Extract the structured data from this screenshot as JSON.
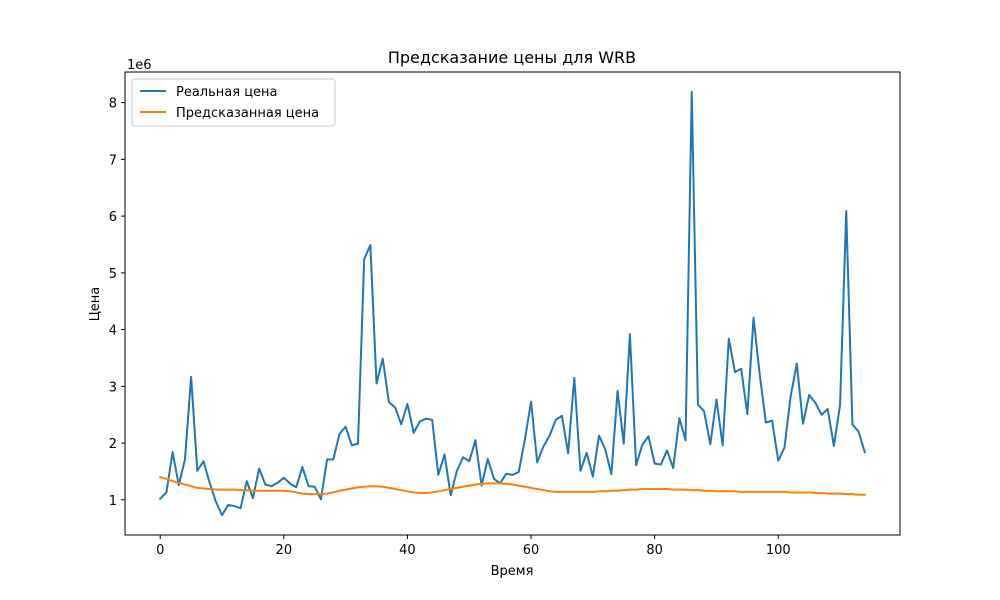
{
  "chart_data": {
    "type": "line",
    "title": "Предсказание цены для WRB",
    "xlabel": "Время",
    "ylabel": "Цена",
    "y_scale_label": "1e6",
    "xlim": [
      -5.7,
      119.7
    ],
    "ylim": [
      0.38,
      8.54
    ],
    "x_ticks": [
      0,
      20,
      40,
      60,
      80,
      100
    ],
    "y_ticks": [
      1,
      2,
      3,
      4,
      5,
      6,
      7,
      8
    ],
    "grid": false,
    "legend_position": "upper-left",
    "series": [
      {
        "name": "Реальная цена",
        "color": "#1f77b4",
        "values": [
          1.02,
          1.13,
          1.84,
          1.26,
          1.71,
          3.17,
          1.51,
          1.68,
          1.3,
          0.97,
          0.73,
          0.91,
          0.89,
          0.85,
          1.33,
          1.03,
          1.55,
          1.27,
          1.24,
          1.3,
          1.39,
          1.29,
          1.22,
          1.58,
          1.24,
          1.23,
          1.01,
          1.71,
          1.71,
          2.16,
          2.29,
          1.96,
          1.99,
          5.24,
          5.49,
          3.05,
          3.49,
          2.72,
          2.63,
          2.33,
          2.69,
          2.18,
          2.38,
          2.43,
          2.41,
          1.44,
          1.8,
          1.08,
          1.51,
          1.75,
          1.68,
          2.05,
          1.25,
          1.72,
          1.37,
          1.29,
          1.46,
          1.44,
          1.49,
          2.06,
          2.73,
          1.66,
          1.94,
          2.13,
          2.41,
          2.48,
          1.82,
          3.15,
          1.51,
          1.83,
          1.41,
          2.13,
          1.89,
          1.45,
          2.92,
          1.99,
          3.92,
          1.61,
          1.97,
          2.12,
          1.64,
          1.62,
          1.87,
          1.56,
          2.44,
          2.05,
          8.19,
          2.68,
          2.56,
          1.98,
          2.77,
          1.96,
          3.84,
          3.25,
          3.31,
          2.51,
          4.21,
          3.21,
          2.36,
          2.4,
          1.69,
          1.92,
          2.82,
          3.4,
          2.34,
          2.85,
          2.71,
          2.5,
          2.6,
          1.95,
          2.67,
          6.09,
          2.33,
          2.2,
          1.84
        ]
      },
      {
        "name": "Предсказанная цена",
        "color": "#ff7f0e",
        "values": [
          1.4,
          1.37,
          1.33,
          1.3,
          1.27,
          1.24,
          1.21,
          1.2,
          1.19,
          1.18,
          1.18,
          1.18,
          1.18,
          1.17,
          1.17,
          1.16,
          1.16,
          1.16,
          1.16,
          1.16,
          1.16,
          1.15,
          1.13,
          1.11,
          1.1,
          1.1,
          1.1,
          1.11,
          1.13,
          1.16,
          1.18,
          1.2,
          1.22,
          1.23,
          1.24,
          1.24,
          1.23,
          1.21,
          1.19,
          1.17,
          1.15,
          1.13,
          1.12,
          1.12,
          1.13,
          1.15,
          1.17,
          1.19,
          1.21,
          1.23,
          1.25,
          1.27,
          1.28,
          1.29,
          1.29,
          1.29,
          1.28,
          1.27,
          1.25,
          1.23,
          1.21,
          1.19,
          1.17,
          1.15,
          1.14,
          1.14,
          1.14,
          1.14,
          1.14,
          1.14,
          1.14,
          1.15,
          1.15,
          1.16,
          1.16,
          1.17,
          1.18,
          1.18,
          1.19,
          1.19,
          1.19,
          1.19,
          1.19,
          1.18,
          1.18,
          1.18,
          1.17,
          1.17,
          1.16,
          1.16,
          1.15,
          1.15,
          1.15,
          1.15,
          1.14,
          1.14,
          1.14,
          1.14,
          1.14,
          1.14,
          1.14,
          1.14,
          1.13,
          1.13,
          1.13,
          1.13,
          1.12,
          1.12,
          1.11,
          1.11,
          1.11,
          1.1,
          1.1,
          1.09,
          1.09
        ]
      }
    ]
  }
}
